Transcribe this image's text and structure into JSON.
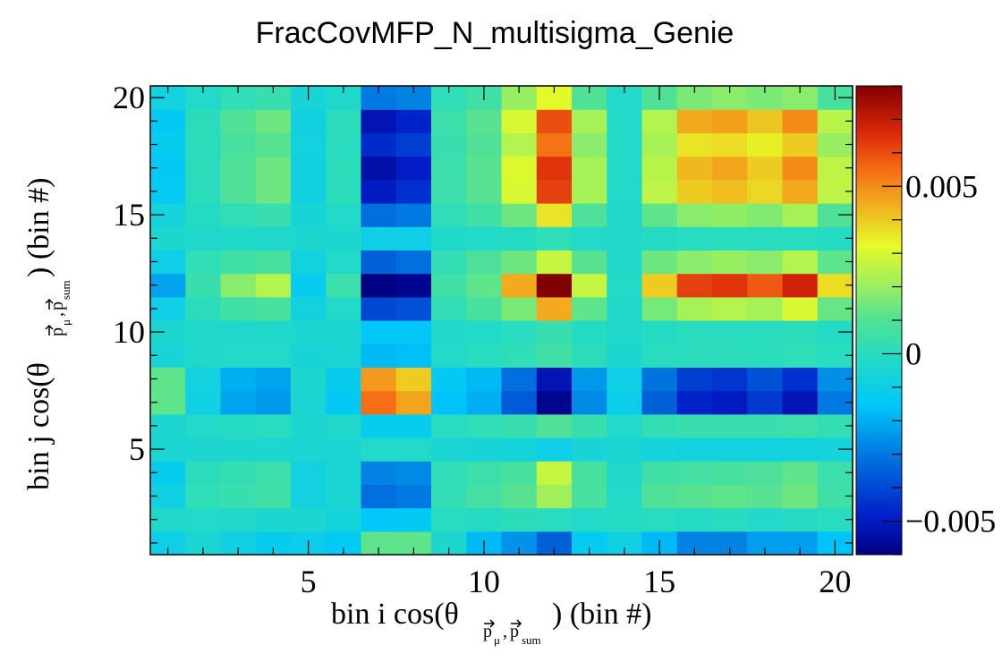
{
  "chart_data": {
    "type": "heatmap",
    "title": "FracCovMFP_N_multisigma_Genie",
    "xlabel": {
      "prefix": "bin i cos(θ",
      "vec1": "p",
      "sub1": "μ",
      "comma": ",",
      "vec2": "p",
      "sub2": "sum",
      "suffix": ") (bin #)"
    },
    "ylabel": {
      "prefix": "bin j cos(θ",
      "vec1": "p",
      "sub1": "μ",
      "comma": ",",
      "vec2": "p",
      "sub2": "sum",
      "suffix": ") (bin #)"
    },
    "xlim": [
      0.5,
      20.5
    ],
    "ylim": [
      0.5,
      20.5
    ],
    "x_ticks": [
      "5",
      "10",
      "15",
      "20"
    ],
    "y_ticks": [
      "5",
      "10",
      "15",
      "20"
    ],
    "colorbar": {
      "range": [
        -0.006,
        0.008
      ],
      "tick_labels": [
        "−0.005",
        "0",
        "0.005"
      ]
    },
    "z": [
      [
        -0.001,
        -0.0005,
        -0.0009,
        -0.0012,
        -0.0011,
        -0.0014,
        0.0012,
        0.0012,
        -0.0004,
        -0.0018,
        -0.0025,
        -0.0035,
        -0.0013,
        -0.0009,
        -0.0018,
        -0.0028,
        -0.0028,
        -0.0023,
        -0.0023,
        -0.0016
      ],
      [
        -0.0003,
        -0.0002,
        -0.0003,
        -0.0004,
        -0.0004,
        -0.0007,
        -0.0015,
        -0.0014,
        0.0,
        -0.0001,
        0.0001,
        0.0,
        -0.0002,
        -0.0001,
        0.0,
        -0.0001,
        0.0,
        -0.0002,
        -0.0001,
        0.0
      ],
      [
        -0.0009,
        0.0002,
        0.0004,
        0.0006,
        -0.0008,
        -0.0005,
        -0.0032,
        -0.003,
        0.0003,
        0.0007,
        0.0011,
        0.0021,
        0.0008,
        -0.0002,
        0.001,
        0.0011,
        0.0012,
        0.0011,
        0.0014,
        0.0006
      ],
      [
        -0.0012,
        0.0001,
        0.0003,
        0.0005,
        -0.0008,
        -0.0005,
        -0.0028,
        -0.0027,
        0.0002,
        0.0005,
        0.0008,
        0.0027,
        0.0008,
        -0.0003,
        0.0006,
        0.0007,
        0.0008,
        0.0009,
        0.0012,
        0.0005
      ],
      [
        -0.0005,
        -0.0004,
        -0.0004,
        -0.0004,
        -0.0005,
        -0.0005,
        -0.0002,
        -0.0002,
        -0.0005,
        -0.0006,
        -0.0007,
        -0.001,
        -0.0006,
        -0.0005,
        -0.0007,
        -0.0008,
        -0.0008,
        -0.0008,
        -0.0008,
        -0.0007
      ],
      [
        -0.0004,
        -0.0002,
        -0.0001,
        0.0,
        -0.0004,
        -0.0003,
        -0.0012,
        -0.0012,
        0.0,
        0.0002,
        0.0004,
        0.001,
        0.0004,
        -0.0002,
        0.0003,
        0.0004,
        0.0004,
        0.0004,
        0.0005,
        0.0003
      ],
      [
        0.0012,
        -0.0009,
        -0.0022,
        -0.0024,
        -0.0005,
        -0.0014,
        0.0055,
        0.0046,
        -0.0016,
        -0.002,
        -0.0036,
        -0.0058,
        -0.0027,
        -0.0011,
        -0.0035,
        -0.0048,
        -0.005,
        -0.0043,
        -0.0052,
        -0.003
      ],
      [
        0.0012,
        -0.0008,
        -0.002,
        -0.0022,
        -0.0004,
        -0.0012,
        0.0048,
        0.004,
        -0.0014,
        -0.0018,
        -0.0032,
        -0.0052,
        -0.0024,
        -0.001,
        -0.0031,
        -0.0042,
        -0.0044,
        -0.0038,
        -0.0045,
        -0.0026
      ],
      [
        -0.0006,
        -0.0003,
        -0.0002,
        -0.0002,
        -0.0006,
        -0.0005,
        -0.0018,
        -0.0017,
        -0.0002,
        0.0,
        0.0002,
        0.0006,
        0.0001,
        -0.0004,
        0.0,
        0.0001,
        0.0001,
        0.0001,
        0.0002,
        0.0
      ],
      [
        -0.0004,
        -0.0003,
        -0.0003,
        -0.0003,
        -0.0004,
        -0.0004,
        -0.0015,
        -0.0015,
        -0.0003,
        -0.0002,
        0.0,
        0.0004,
        -0.0001,
        -0.0003,
        -0.0001,
        0.0,
        0.0,
        0.0,
        0.0001,
        -0.0001
      ],
      [
        -0.001,
        0.0001,
        0.0006,
        0.0008,
        -0.0008,
        -0.0002,
        -0.004,
        -0.0038,
        0.0003,
        0.0008,
        0.0016,
        0.0045,
        0.0012,
        -0.0003,
        0.0015,
        0.0022,
        0.0024,
        0.0022,
        0.003,
        0.0013
      ],
      [
        -0.0022,
        0.0004,
        0.0018,
        0.0024,
        -0.0012,
        0.0005,
        -0.0062,
        -0.0058,
        0.0006,
        0.0012,
        0.0045,
        0.0082,
        0.0027,
        -0.0002,
        0.004,
        0.0062,
        0.0064,
        0.0058,
        0.0068,
        0.0037
      ],
      [
        -0.001,
        0.0002,
        0.0006,
        0.0008,
        -0.0008,
        -0.0002,
        -0.0035,
        -0.0032,
        0.0003,
        0.0009,
        0.0014,
        0.0027,
        0.0011,
        -0.0003,
        0.0014,
        0.0018,
        0.002,
        0.0018,
        0.0024,
        0.0012
      ],
      [
        -0.0004,
        -0.0003,
        -0.0003,
        -0.0003,
        -0.0004,
        -0.0004,
        -0.001,
        -0.001,
        -0.0003,
        -0.0002,
        -0.0001,
        0.0002,
        -0.0002,
        -0.0003,
        -0.0001,
        0.0,
        0.0,
        0.0,
        0.0,
        -0.0001
      ],
      [
        -0.0007,
        -0.0001,
        0.0002,
        0.0004,
        -0.0006,
        -0.0002,
        -0.0032,
        -0.003,
        0.0002,
        0.0006,
        0.0014,
        0.0036,
        0.0009,
        -0.0003,
        0.0012,
        0.0018,
        0.0019,
        0.0017,
        0.0022,
        0.001
      ],
      [
        -0.0013,
        0.0001,
        0.001,
        0.0014,
        -0.0009,
        0.0001,
        -0.005,
        -0.0045,
        0.0005,
        0.0011,
        0.003,
        0.0062,
        0.0022,
        -0.0002,
        0.0026,
        0.004,
        0.0042,
        0.0038,
        0.0045,
        0.0026
      ],
      [
        -0.0014,
        0.0001,
        0.001,
        0.0014,
        -0.0009,
        0.0001,
        -0.0054,
        -0.0049,
        0.0005,
        0.0011,
        0.0031,
        0.0064,
        0.0022,
        -0.0002,
        0.0025,
        0.0043,
        0.0046,
        0.004,
        0.005,
        0.0026
      ],
      [
        -0.0012,
        0.0001,
        0.0008,
        0.0011,
        -0.0008,
        0.0,
        -0.0046,
        -0.0042,
        0.0004,
        0.001,
        0.0024,
        0.0054,
        0.0018,
        -0.0002,
        0.0022,
        0.0036,
        0.0037,
        0.0034,
        0.004,
        0.002
      ],
      [
        -0.0014,
        0.0001,
        0.001,
        0.0014,
        -0.0009,
        0.0001,
        -0.0052,
        -0.0048,
        0.0005,
        0.0011,
        0.003,
        0.006,
        0.0022,
        -0.0002,
        0.0024,
        0.0045,
        0.0047,
        0.0041,
        0.005,
        0.0025
      ],
      [
        -0.0008,
        -0.0002,
        0.0002,
        0.0004,
        -0.0006,
        -0.0003,
        -0.003,
        -0.0028,
        0.0002,
        0.0006,
        0.002,
        0.0032,
        0.001,
        -0.0002,
        0.001,
        0.0016,
        0.0018,
        0.0016,
        0.0018,
        0.0008
      ]
    ]
  }
}
